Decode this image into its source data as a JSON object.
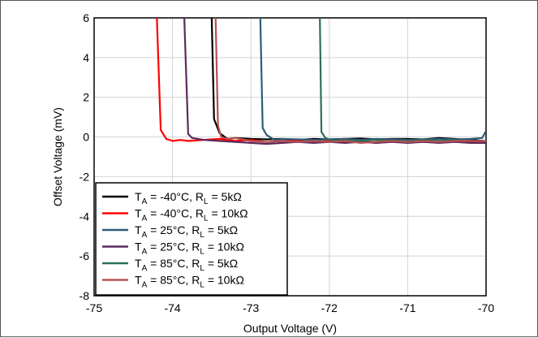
{
  "chart_data": {
    "type": "line",
    "title": "",
    "xlabel": "Output Voltage (V)",
    "ylabel": "Offset Voltage (mV)",
    "xlim": [
      -75,
      -70
    ],
    "ylim": [
      -8,
      6
    ],
    "xticks": [
      -75,
      -74,
      -73,
      -72,
      -71,
      -70
    ],
    "yticks": [
      -8,
      -6,
      -4,
      -2,
      0,
      2,
      4,
      6
    ],
    "grid": true,
    "legend_position": "bottom-left",
    "series": [
      {
        "color": "#000000",
        "legend": [
          [
            "T",
            "A",
            " = -40°C, R",
            "L",
            " = 5kΩ"
          ]
        ],
        "x": [
          -73.5,
          -73.47,
          -73.4,
          -73.3,
          -73.2,
          -73.0,
          -72.8,
          -72.6,
          -72.4,
          -72.2,
          -72.0,
          -71.8,
          -71.6,
          -71.4,
          -71.2,
          -71.0,
          -70.8,
          -70.6,
          -70.4,
          -70.2,
          -70.02,
          -70.0
        ],
        "y": [
          6,
          0.9,
          0.2,
          -0.1,
          -0.05,
          -0.1,
          -0.12,
          -0.1,
          -0.15,
          -0.1,
          -0.12,
          -0.1,
          -0.08,
          -0.12,
          -0.1,
          -0.1,
          -0.12,
          -0.05,
          -0.1,
          -0.15,
          -0.2,
          -0.35
        ]
      },
      {
        "color": "#ff0000",
        "legend": [
          [
            "T",
            "A",
            " = -40°C, R",
            "L",
            " = 10kΩ"
          ]
        ],
        "x": [
          -74.2,
          -74.15,
          -74.08,
          -74.0,
          -73.9,
          -73.8,
          -73.6,
          -73.4,
          -73.2,
          -73.0,
          -72.8,
          -72.6,
          -72.4,
          -72.2,
          -72.0,
          -71.8,
          -71.6,
          -71.4,
          -71.2,
          -71.0,
          -70.8,
          -70.6,
          -70.4,
          -70.2,
          -70.0
        ],
        "y": [
          6,
          0.35,
          -0.1,
          -0.2,
          -0.15,
          -0.2,
          -0.15,
          -0.1,
          -0.2,
          -0.15,
          -0.25,
          -0.2,
          -0.2,
          -0.25,
          -0.2,
          -0.25,
          -0.2,
          -0.3,
          -0.2,
          -0.25,
          -0.2,
          -0.25,
          -0.2,
          -0.25,
          -0.2
        ]
      },
      {
        "color": "#2e5c7a",
        "legend": [
          [
            "T",
            "A",
            " = 25°C, R",
            "L",
            " = 5kΩ"
          ]
        ],
        "x": [
          -72.88,
          -72.85,
          -72.8,
          -72.7,
          -72.6,
          -72.4,
          -72.2,
          -72.0,
          -71.8,
          -71.6,
          -71.4,
          -71.2,
          -71.0,
          -70.8,
          -70.6,
          -70.4,
          -70.2,
          -70.05,
          -70.0
        ],
        "y": [
          6,
          0.45,
          0.1,
          -0.15,
          -0.1,
          -0.12,
          -0.15,
          -0.12,
          -0.1,
          -0.15,
          -0.1,
          -0.12,
          -0.15,
          -0.12,
          -0.1,
          -0.12,
          -0.1,
          -0.05,
          0.3
        ]
      },
      {
        "color": "#5c2a5c",
        "legend": [
          [
            "T",
            "A",
            " = 25°C, R",
            "L",
            " = 10kΩ"
          ]
        ],
        "x": [
          -73.85,
          -73.8,
          -73.75,
          -73.6,
          -73.4,
          -73.2,
          -73.0,
          -72.8,
          -72.6,
          -72.4,
          -72.2,
          -72.0,
          -71.8,
          -71.6,
          -71.4,
          -71.2,
          -71.0,
          -70.8,
          -70.6,
          -70.4,
          -70.2,
          -70.0
        ],
        "y": [
          6,
          0.15,
          -0.05,
          -0.15,
          -0.2,
          -0.25,
          -0.3,
          -0.35,
          -0.3,
          -0.25,
          -0.3,
          -0.25,
          -0.3,
          -0.25,
          -0.3,
          -0.25,
          -0.3,
          -0.25,
          -0.3,
          -0.25,
          -0.3,
          -0.3
        ]
      },
      {
        "color": "#2e6e5a",
        "legend": [
          [
            "T",
            "A",
            " = 85°C, R",
            "L",
            " = 5kΩ"
          ]
        ],
        "x": [
          -72.12,
          -72.1,
          -72.05,
          -71.95,
          -71.8,
          -71.6,
          -71.4,
          -71.2,
          -71.0,
          -70.8,
          -70.6,
          -70.4,
          -70.2,
          -70.0
        ],
        "y": [
          6,
          0.25,
          -0.05,
          -0.2,
          -0.15,
          -0.2,
          -0.15,
          -0.2,
          -0.2,
          -0.15,
          -0.2,
          -0.15,
          -0.2,
          -0.2
        ]
      },
      {
        "color": "#b85050",
        "legend": [
          [
            "T",
            "A",
            " = 85°C, R",
            "L",
            " = 10kΩ"
          ]
        ],
        "x": [
          -73.45,
          -73.42,
          -73.38,
          -73.3,
          -73.2,
          -73.0,
          -72.8,
          -72.6,
          -72.4,
          -72.2,
          -72.0,
          -71.8,
          -71.6,
          -71.4,
          -71.2,
          -71.0,
          -70.8,
          -70.6,
          -70.4,
          -70.2,
          -70.0
        ],
        "y": [
          6,
          0.6,
          0.0,
          -0.1,
          -0.05,
          -0.2,
          -0.25,
          -0.2,
          -0.25,
          -0.2,
          -0.25,
          -0.2,
          -0.3,
          -0.25,
          -0.2,
          -0.25,
          -0.2,
          -0.25,
          -0.2,
          -0.2,
          -0.2
        ]
      }
    ]
  }
}
